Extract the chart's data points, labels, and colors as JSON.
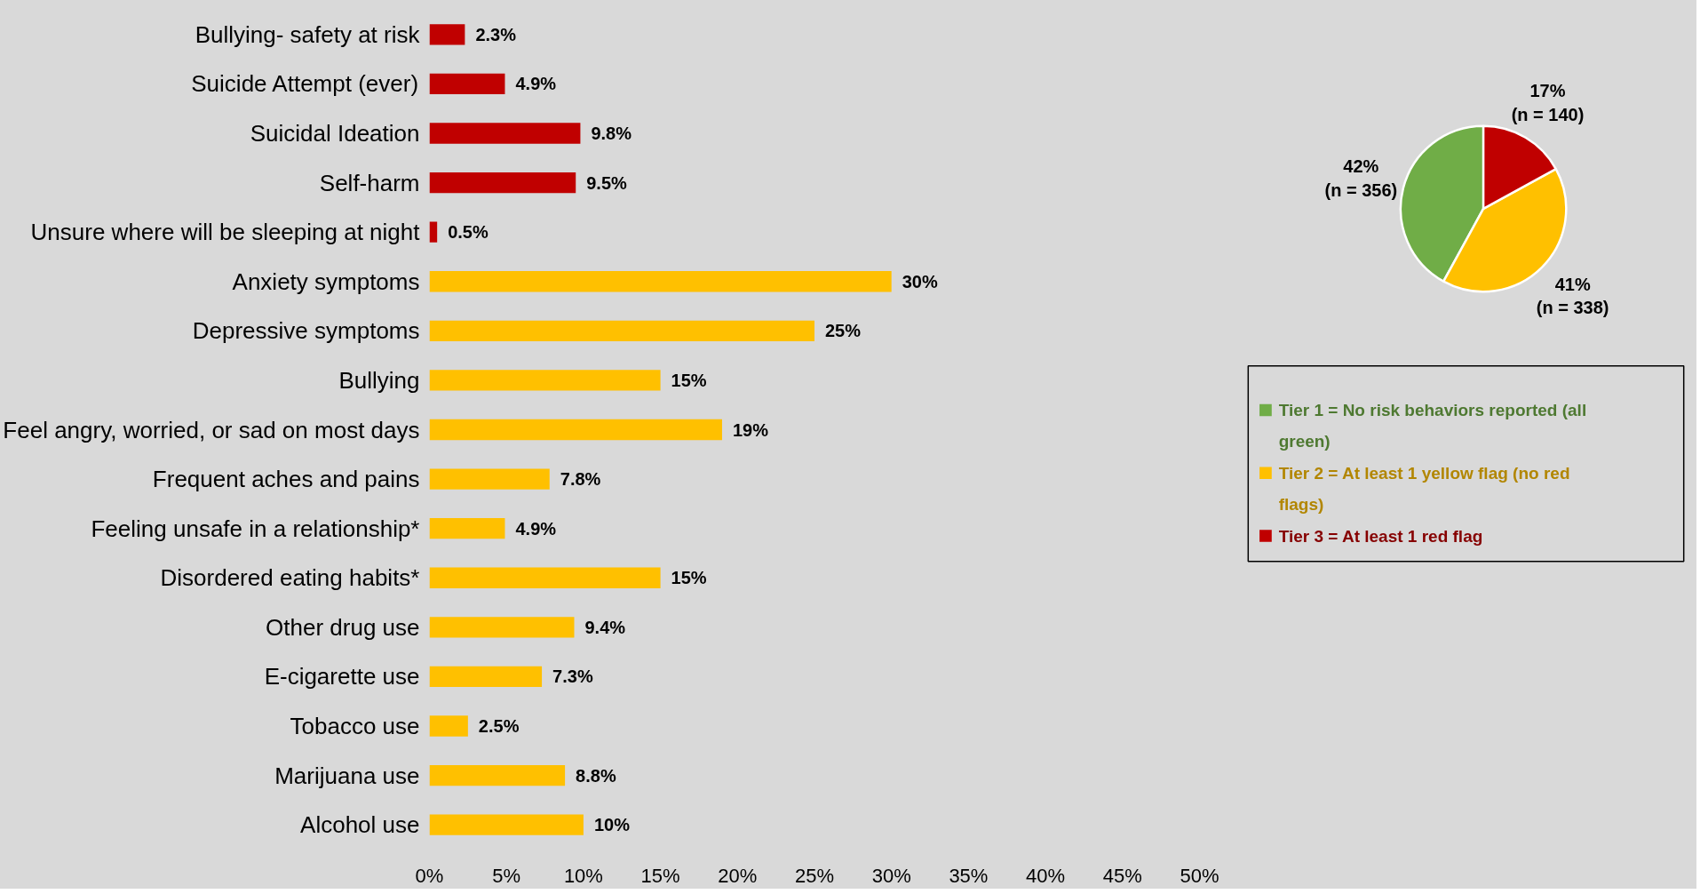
{
  "chart_data": [
    {
      "type": "bar",
      "orientation": "horizontal",
      "categories": [
        "Bullying- safety at risk",
        "Suicide Attempt (ever)",
        "Suicidal Ideation",
        "Self-harm",
        "Unsure where will be sleeping at night",
        "Anxiety symptoms",
        "Depressive symptoms",
        "Bullying",
        "Feel angry, worried, or sad on most days",
        "Frequent aches and pains",
        "Feeling unsafe in a relationship*",
        "Disordered eating habits*",
        "Other drug use",
        "E-cigarette use",
        "Tobacco use",
        "Marijuana use",
        "Alcohol use"
      ],
      "values": [
        2.3,
        4.9,
        9.8,
        9.5,
        0.5,
        30,
        25,
        15,
        19,
        7.8,
        4.9,
        15,
        9.4,
        7.3,
        2.5,
        8.8,
        10
      ],
      "value_labels": [
        "2.3%",
        "4.9%",
        "9.8%",
        "9.5%",
        "0.5%",
        "30%",
        "25%",
        "15%",
        "19%",
        "7.8%",
        "4.9%",
        "15%",
        "9.4%",
        "7.3%",
        "2.5%",
        "8.8%",
        "10%"
      ],
      "colors": [
        "#c00000",
        "#c00000",
        "#c00000",
        "#c00000",
        "#c00000",
        "#ffc000",
        "#ffc000",
        "#ffc000",
        "#ffc000",
        "#ffc000",
        "#ffc000",
        "#ffc000",
        "#ffc000",
        "#ffc000",
        "#ffc000",
        "#ffc000",
        "#ffc000"
      ],
      "xlim": [
        0,
        50
      ],
      "xticks": [
        {
          "value": 0,
          "label": "0%"
        },
        {
          "value": 5,
          "label": "5%"
        },
        {
          "value": 10,
          "label": "10%"
        },
        {
          "value": 15,
          "label": "15%"
        },
        {
          "value": 20,
          "label": "20%"
        },
        {
          "value": 25,
          "label": "25%"
        },
        {
          "value": 30,
          "label": "30%"
        },
        {
          "value": 35,
          "label": "35%"
        },
        {
          "value": 40,
          "label": "40%"
        },
        {
          "value": 45,
          "label": "45%"
        },
        {
          "value": 50,
          "label": "50%"
        }
      ],
      "grid": false
    },
    {
      "type": "pie",
      "categories": [
        "Tier 1 = No risk behaviors reported (all green)",
        "Tier 2 = At least 1 yellow flag (no red flags)",
        "Tier 3 = At least 1 red flag"
      ],
      "values": [
        42,
        41,
        17
      ],
      "value_labels": [
        "42%\n(n = 356)",
        "41%\n(n = 338)",
        "17%\n(n = 140)"
      ],
      "colors": [
        "#70ad47",
        "#ffc000",
        "#c00000"
      ],
      "legend": "bottom"
    }
  ]
}
